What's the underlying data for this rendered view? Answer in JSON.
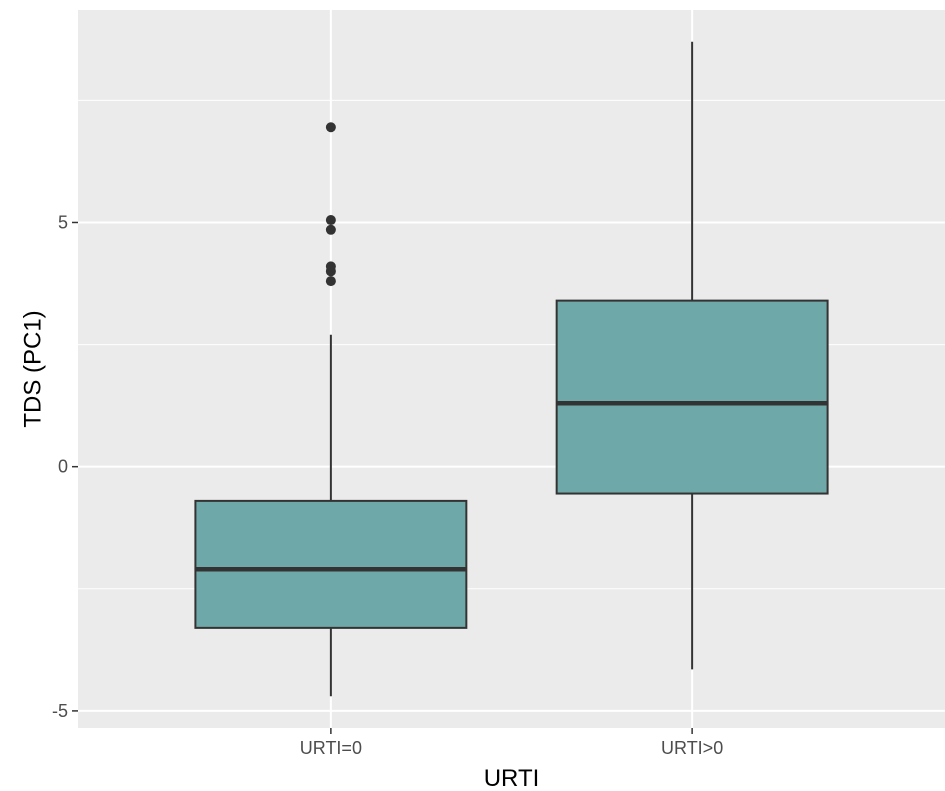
{
  "chart_data": {
    "type": "boxplot",
    "title": "",
    "xlabel": "URTI",
    "ylabel": "TDS (PC1)",
    "categories": [
      "URTI=0",
      "URTI>0"
    ],
    "y_ticks": [
      -5,
      0,
      5
    ],
    "y_tick_labels": [
      "-5",
      "0",
      "5"
    ],
    "ylim": [
      -5.35,
      9.35
    ],
    "grid": true,
    "box_fill": "#6fa8a8",
    "panel_background": "#ebebeb",
    "boxes": [
      {
        "category": "URTI=0",
        "lower_whisker": -4.7,
        "q1": -3.3,
        "median": -2.1,
        "q3": -0.7,
        "upper_whisker": 2.7,
        "outliers": [
          3.8,
          4.0,
          4.1,
          4.85,
          5.05,
          6.95
        ]
      },
      {
        "category": "URTI>0",
        "lower_whisker": -4.15,
        "q1": -0.55,
        "median": 1.3,
        "q3": 3.4,
        "upper_whisker": 8.7,
        "outliers": []
      }
    ]
  }
}
